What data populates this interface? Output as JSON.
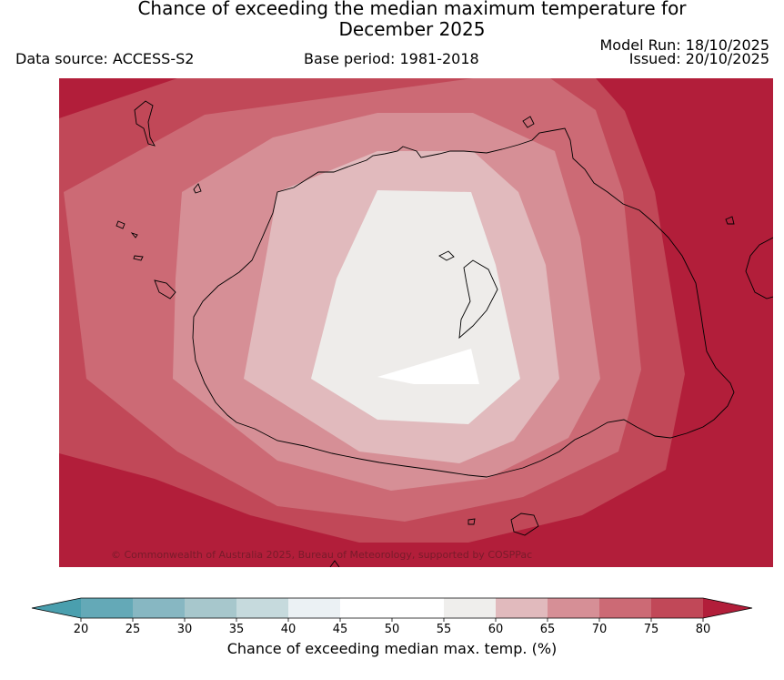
{
  "title": {
    "line1": "Chance of exceeding the median maximum temperature for",
    "line2": "December 2025"
  },
  "header": {
    "data_source": "Data source: ACCESS-S2",
    "base_period": "Base period: 1981-2018",
    "model_run": "Model Run: 18/10/2025",
    "issued": "Issued: 20/10/2025"
  },
  "map": {
    "copyright": "© Commonwealth of Australia 2025, Bureau of Meteorology, supported by COSPPac",
    "colors": {
      "band_80_plus": "#b21e3a",
      "band_75_80": "#c14858",
      "band_70_75": "#cc6a75",
      "band_65_70": "#d68f96",
      "band_60_65": "#e1babd",
      "band_55_60": "#eeecea",
      "band_50_55": "#ffffff",
      "coastline": "#000000"
    }
  },
  "colorbar": {
    "title": "Chance of exceeding median max. temp. (%)",
    "ticks": [
      "20",
      "25",
      "30",
      "35",
      "40",
      "45",
      "50",
      "55",
      "60",
      "65",
      "70",
      "75",
      "80"
    ],
    "under_color": "#4a9fae",
    "over_color": "#b21e3a",
    "colors": [
      "#64a9b7",
      "#87b7c2",
      "#a7c7cc",
      "#c6dadd",
      "#ebf1f4",
      "#ffffff",
      "#ffffff",
      "#efeeec",
      "#e1babd",
      "#d68f96",
      "#cc6a75",
      "#c14858"
    ]
  }
}
